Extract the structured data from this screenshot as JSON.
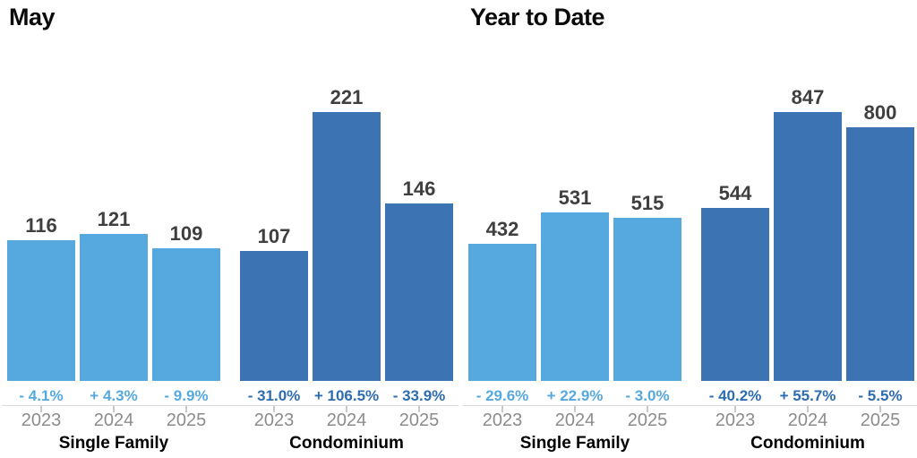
{
  "colors": {
    "light_blue_bar": "#56A9DE",
    "dark_blue_bar": "#3B73B3",
    "light_blue_pct_text": "#56A9DE",
    "dark_blue_pct_text": "#2E6CB0",
    "value_label_text": "#3F3F3F",
    "year_label_text": "#8C8C8C",
    "axis_line": "#D9D9D9",
    "title_text": "#0B0B0B"
  },
  "chart_data": [
    {
      "type": "bar",
      "title": "May",
      "categories": [
        "2023",
        "2024",
        "2025"
      ],
      "xlabel": "",
      "ylabel": "",
      "ylim": [
        0,
        221
      ],
      "grid": false,
      "legend": "none",
      "groups": [
        {
          "name": "Single Family",
          "series_color": "#56A9DE",
          "pct_color": "#56A9DE",
          "values": [
            116,
            121,
            109
          ],
          "pct_change": [
            "- 4.1%",
            "+ 4.3%",
            "- 9.9%"
          ]
        },
        {
          "name": "Condominium",
          "series_color": "#3B73B3",
          "pct_color": "#2E6CB0",
          "values": [
            107,
            221,
            146
          ],
          "pct_change": [
            "- 31.0%",
            "+ 106.5%",
            "- 33.9%"
          ]
        }
      ]
    },
    {
      "type": "bar",
      "title": "Year to Date",
      "categories": [
        "2023",
        "2024",
        "2025"
      ],
      "xlabel": "",
      "ylabel": "",
      "ylim": [
        0,
        847
      ],
      "grid": false,
      "legend": "none",
      "groups": [
        {
          "name": "Single Family",
          "series_color": "#56A9DE",
          "pct_color": "#56A9DE",
          "values": [
            432,
            531,
            515
          ],
          "pct_change": [
            "- 29.6%",
            "+ 22.9%",
            "- 3.0%"
          ]
        },
        {
          "name": "Condominium",
          "series_color": "#3B73B3",
          "pct_color": "#2E6CB0",
          "values": [
            544,
            847,
            800
          ],
          "pct_change": [
            "- 40.2%",
            "+ 55.7%",
            "- 5.5%"
          ]
        }
      ]
    }
  ]
}
